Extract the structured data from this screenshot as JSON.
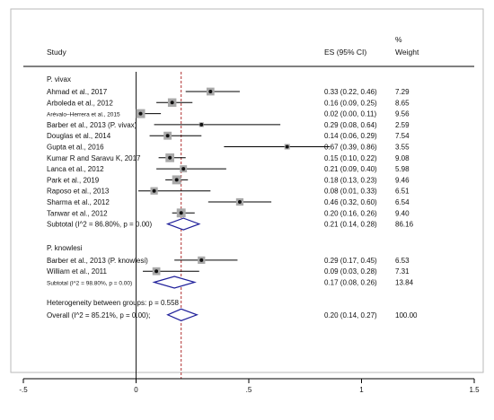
{
  "headers": {
    "study": "Study",
    "es": "ES (95% CI)",
    "weight_pct": "%",
    "weight": "Weight"
  },
  "chart_data": {
    "type": "forest",
    "x_ticks": [
      {
        "value": -0.5,
        "label": "-.5"
      },
      {
        "value": 0,
        "label": "0"
      },
      {
        "value": 0.5,
        "label": ".5"
      },
      {
        "value": 1,
        "label": "1"
      },
      {
        "value": 1.5,
        "label": "1.5"
      }
    ],
    "xlim": [
      -0.5,
      1.5
    ],
    "overall_line": 0.2,
    "groups": [
      {
        "name": "P. vivax",
        "studies": [
          {
            "label": "Ahmad et al., 2017",
            "es": 0.33,
            "lo": 0.22,
            "hi": 0.46,
            "weight": 7.29,
            "es_text": "0.33 (0.22, 0.46)",
            "weight_text": "7.29"
          },
          {
            "label": "Arboleda et al., 2012",
            "es": 0.16,
            "lo": 0.09,
            "hi": 0.25,
            "weight": 8.65,
            "es_text": "0.16 (0.09, 0.25)",
            "weight_text": "8.65"
          },
          {
            "label": "Arévalo–Herrera et al., 2015",
            "es": 0.02,
            "lo": 0.0,
            "hi": 0.11,
            "weight": 9.56,
            "es_text": "0.02 (0.00, 0.11)",
            "weight_text": "9.56",
            "small": true
          },
          {
            "label": "Barber et al., 2013 (P. vivax)",
            "es": 0.29,
            "lo": 0.08,
            "hi": 0.64,
            "weight": 2.59,
            "es_text": "0.29 (0.08, 0.64)",
            "weight_text": "2.59"
          },
          {
            "label": "Douglas et al., 2014",
            "es": 0.14,
            "lo": 0.06,
            "hi": 0.29,
            "weight": 7.54,
            "es_text": "0.14 (0.06, 0.29)",
            "weight_text": "7.54"
          },
          {
            "label": "Gupta et al., 2016",
            "es": 0.67,
            "lo": 0.39,
            "hi": 0.86,
            "weight": 3.55,
            "es_text": "0.67 (0.39, 0.86)",
            "weight_text": "3.55"
          },
          {
            "label": "Kumar R and Saravu K, 2017",
            "es": 0.15,
            "lo": 0.1,
            "hi": 0.22,
            "weight": 9.08,
            "es_text": "0.15 (0.10, 0.22)",
            "weight_text": "9.08"
          },
          {
            "label": "Lanca et al., 2012",
            "es": 0.21,
            "lo": 0.09,
            "hi": 0.4,
            "weight": 5.98,
            "es_text": "0.21 (0.09, 0.40)",
            "weight_text": "5.98"
          },
          {
            "label": "Park et al., 2019",
            "es": 0.18,
            "lo": 0.13,
            "hi": 0.23,
            "weight": 9.46,
            "es_text": "0.18 (0.13, 0.23)",
            "weight_text": "9.46"
          },
          {
            "label": "Raposo et al., 2013",
            "es": 0.08,
            "lo": 0.01,
            "hi": 0.33,
            "weight": 6.51,
            "es_text": "0.08 (0.01, 0.33)",
            "weight_text": "6.51"
          },
          {
            "label": "Sharma et al., 2012",
            "es": 0.46,
            "lo": 0.32,
            "hi": 0.6,
            "weight": 6.54,
            "es_text": "0.46 (0.32, 0.60)",
            "weight_text": "6.54"
          },
          {
            "label": "Tanwar et al., 2012",
            "es": 0.2,
            "lo": 0.16,
            "hi": 0.26,
            "weight": 9.4,
            "es_text": "0.20 (0.16, 0.26)",
            "weight_text": "9.40"
          }
        ],
        "subtotal": {
          "label": "Subtotal  (I^2 = 86.80%, p = 0.00)",
          "es": 0.21,
          "lo": 0.14,
          "hi": 0.28,
          "es_text": "0.21 (0.14, 0.28)",
          "weight_text": "86.16"
        }
      },
      {
        "name": "P. knowlesi",
        "studies": [
          {
            "label": "Barber et al., 2013 (P. knowlesi)",
            "es": 0.29,
            "lo": 0.17,
            "hi": 0.45,
            "weight": 6.53,
            "es_text": "0.29 (0.17, 0.45)",
            "weight_text": "6.53"
          },
          {
            "label": "William et al., 2011",
            "es": 0.09,
            "lo": 0.03,
            "hi": 0.28,
            "weight": 7.31,
            "es_text": "0.09 (0.03, 0.28)",
            "weight_text": "7.31"
          }
        ],
        "subtotal": {
          "label": "Subtotal  (I^2 = 98.80%, p = 0.00)",
          "es": 0.17,
          "lo": 0.08,
          "hi": 0.26,
          "es_text": "0.17 (0.08, 0.26)",
          "weight_text": "13.84",
          "small": true
        }
      }
    ],
    "heterogeneity": "Heterogeneity between groups: p = 0.558",
    "overall": {
      "label": "Overall  (I^2 = 85.21%, p = 0.00);",
      "es": 0.2,
      "lo": 0.14,
      "hi": 0.27,
      "es_text": "0.20 (0.14, 0.27)",
      "weight_text": "100.00"
    }
  }
}
